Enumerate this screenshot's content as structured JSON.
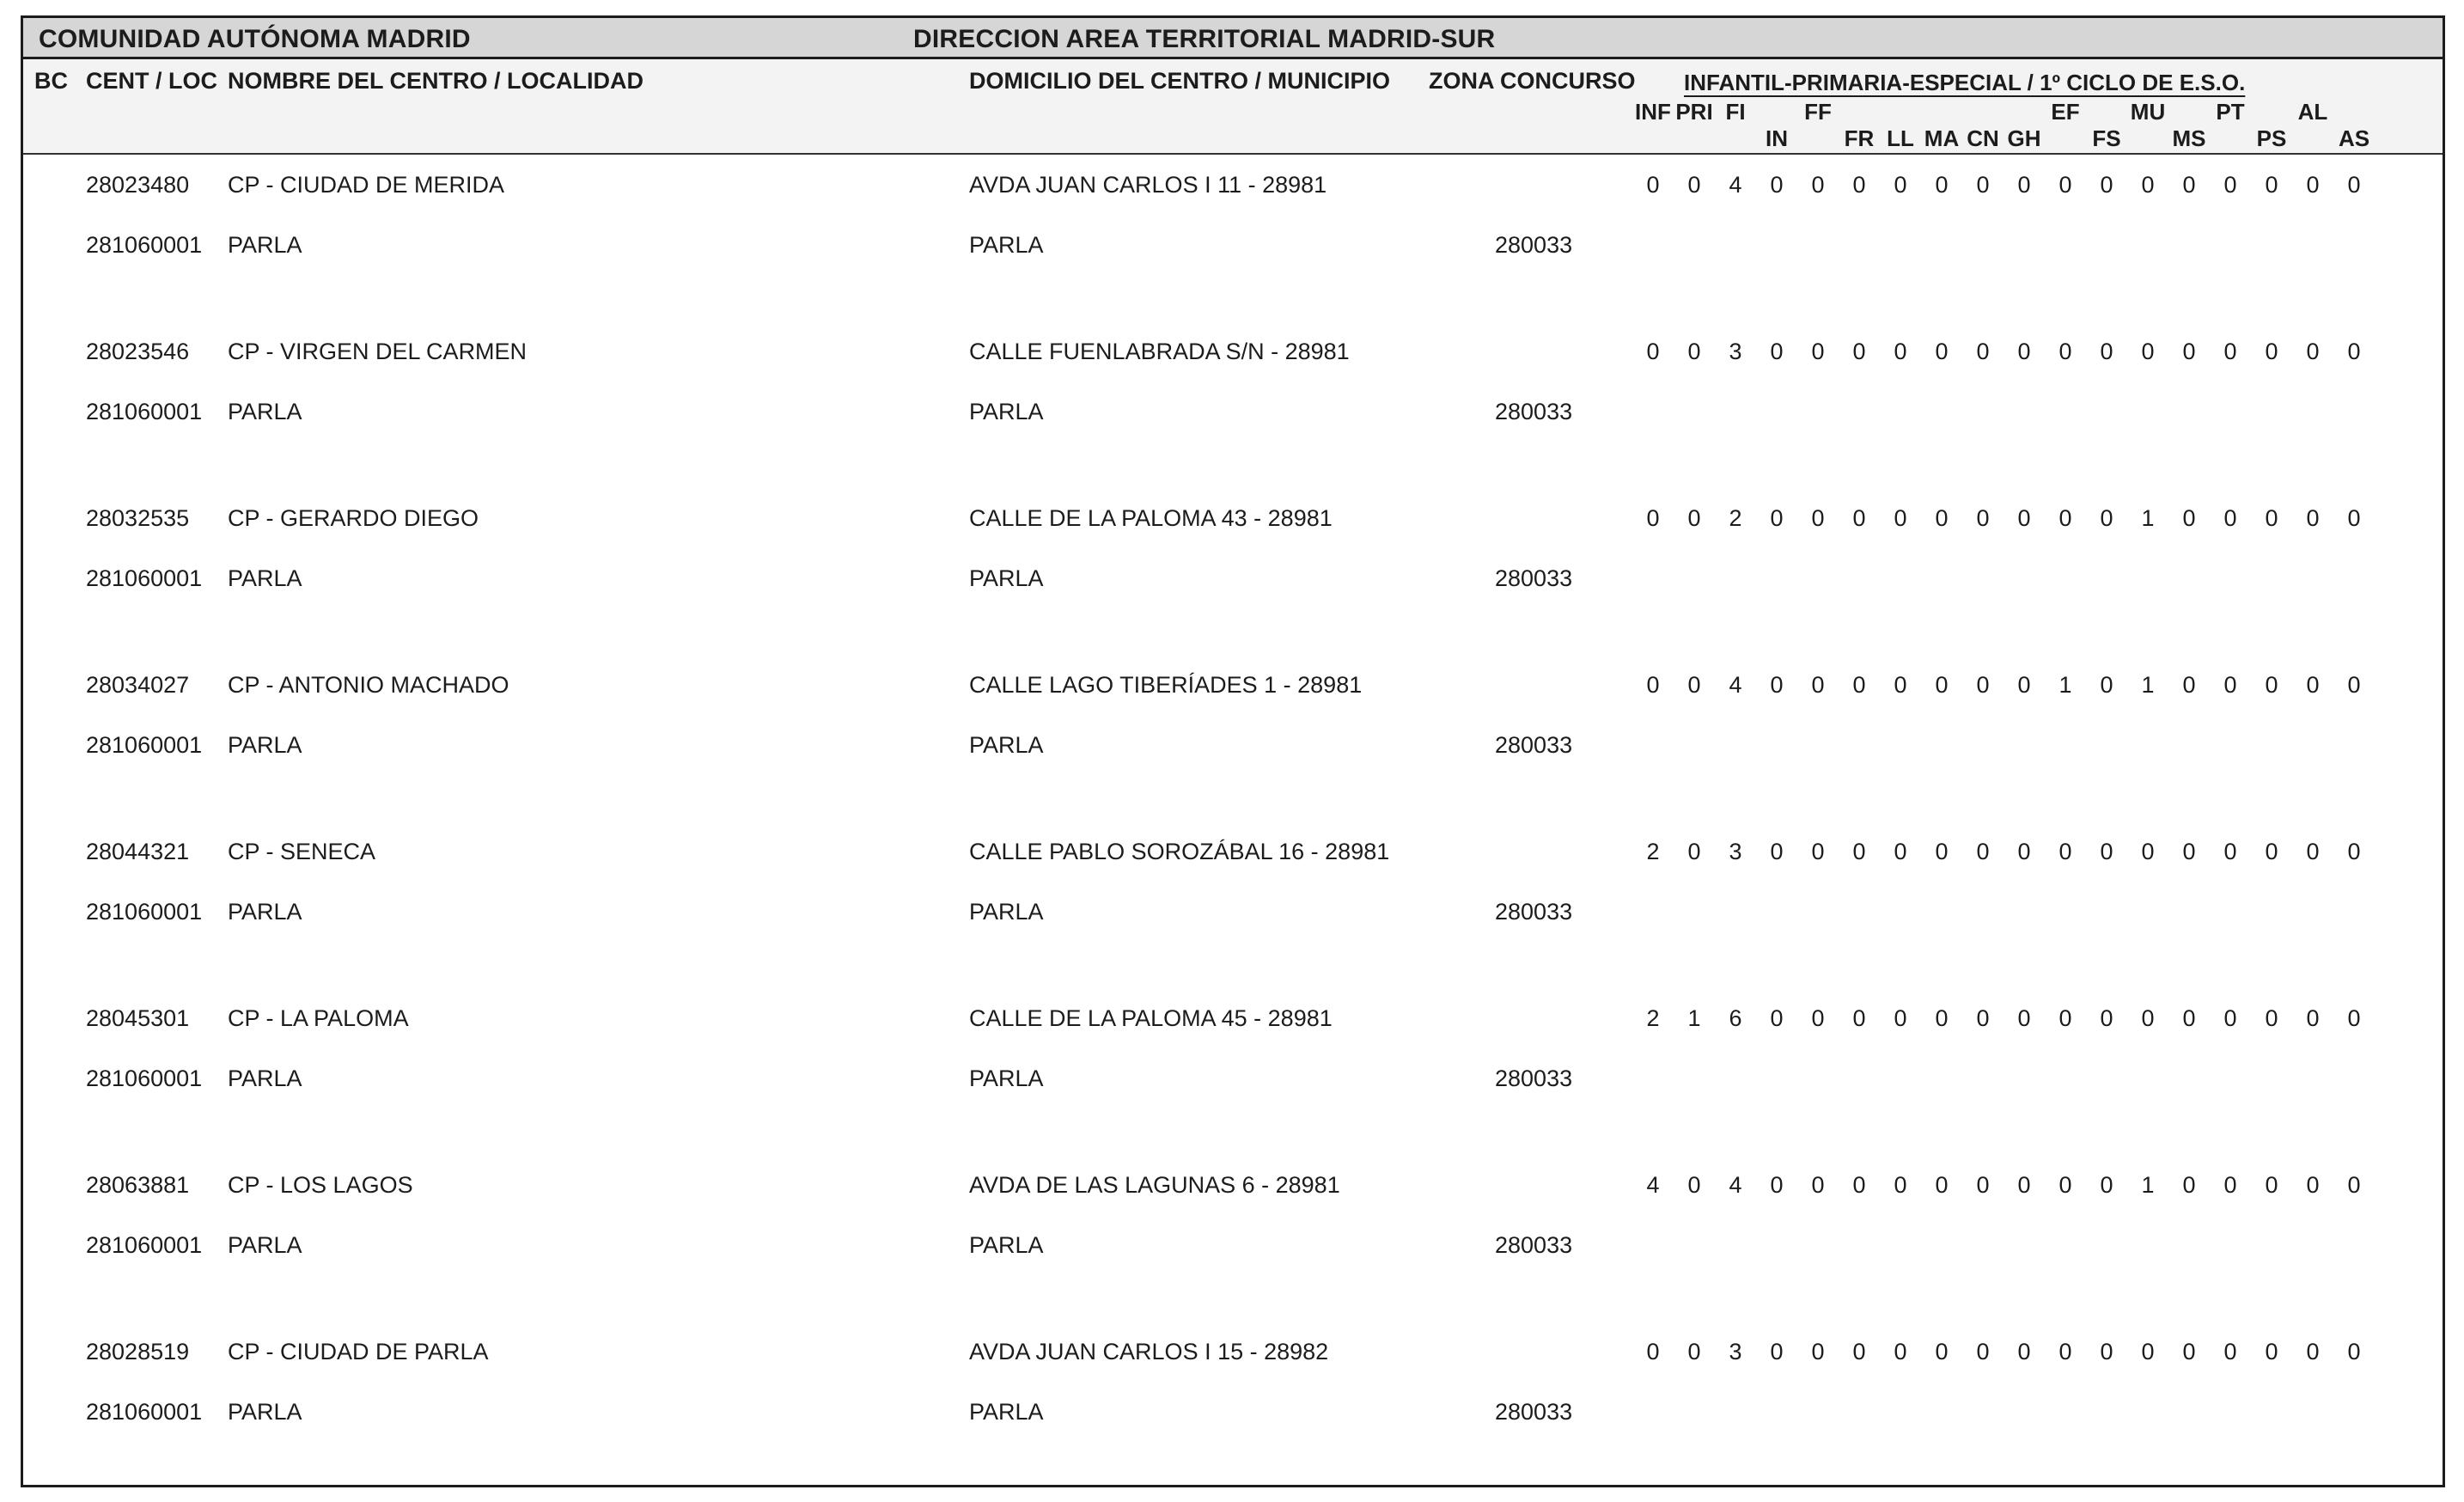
{
  "page": {
    "region_title": "COMUNIDAD AUTÓNOMA MADRID",
    "direction_title": "DIRECCION AREA TERRITORIAL MADRID-SUR"
  },
  "table": {
    "headers": {
      "bc": "BC",
      "cent_loc": "CENT / LOC",
      "nombre": "NOMBRE DEL CENTRO / LOCALIDAD",
      "domicilio": "DOMICILIO DEL CENTRO / MUNICIPIO",
      "zona": "ZONA CONCURSO",
      "group_title": "INFANTIL-PRIMARIA-ESPECIAL / 1º CICLO DE E.S.O.",
      "subject_columns": [
        "INF",
        "PRI",
        "FI",
        "IN",
        "FF",
        "FR",
        "LL",
        "MA",
        "CN",
        "GH",
        "EF",
        "FS",
        "MU",
        "MS",
        "PT",
        "PS",
        "AL",
        "AS"
      ],
      "subject_row_top": [
        "INF",
        "PRI",
        "FI",
        "",
        "FF",
        "",
        "",
        "",
        "",
        "",
        "EF",
        "",
        "MU",
        "",
        "PT",
        "",
        "AL",
        ""
      ],
      "subject_row_bottom": [
        "",
        "",
        "",
        "IN",
        "",
        "FR",
        "LL",
        "MA",
        "CN",
        "GH",
        "",
        "FS",
        "",
        "MS",
        "",
        "PS",
        "",
        "AS"
      ]
    },
    "rows": [
      {
        "center_code": "28023480",
        "center_name": "CP - CIUDAD DE MERIDA",
        "address": "AVDA JUAN CARLOS I 11 - 28981",
        "loc_code": "281060001",
        "locality": "PARLA",
        "municipality": "PARLA",
        "zona_concurso": "280033",
        "values": [
          "0",
          "0",
          "4",
          "0",
          "0",
          "0",
          "0",
          "0",
          "0",
          "0",
          "0",
          "0",
          "0",
          "0",
          "0",
          "0",
          "0",
          "0"
        ]
      },
      {
        "center_code": "28023546",
        "center_name": "CP - VIRGEN DEL CARMEN",
        "address": "CALLE FUENLABRADA S/N - 28981",
        "loc_code": "281060001",
        "locality": "PARLA",
        "municipality": "PARLA",
        "zona_concurso": "280033",
        "values": [
          "0",
          "0",
          "3",
          "0",
          "0",
          "0",
          "0",
          "0",
          "0",
          "0",
          "0",
          "0",
          "0",
          "0",
          "0",
          "0",
          "0",
          "0"
        ]
      },
      {
        "center_code": "28032535",
        "center_name": "CP - GERARDO DIEGO",
        "address": "CALLE DE LA PALOMA 43 - 28981",
        "loc_code": "281060001",
        "locality": "PARLA",
        "municipality": "PARLA",
        "zona_concurso": "280033",
        "values": [
          "0",
          "0",
          "2",
          "0",
          "0",
          "0",
          "0",
          "0",
          "0",
          "0",
          "0",
          "0",
          "1",
          "0",
          "0",
          "0",
          "0",
          "0"
        ]
      },
      {
        "center_code": "28034027",
        "center_name": "CP - ANTONIO MACHADO",
        "address": "CALLE LAGO TIBERÍADES 1 - 28981",
        "loc_code": "281060001",
        "locality": "PARLA",
        "municipality": "PARLA",
        "zona_concurso": "280033",
        "values": [
          "0",
          "0",
          "4",
          "0",
          "0",
          "0",
          "0",
          "0",
          "0",
          "0",
          "1",
          "0",
          "1",
          "0",
          "0",
          "0",
          "0",
          "0"
        ]
      },
      {
        "center_code": "28044321",
        "center_name": "CP - SENECA",
        "address": "CALLE PABLO SOROZÁBAL 16 - 28981",
        "loc_code": "281060001",
        "locality": "PARLA",
        "municipality": "PARLA",
        "zona_concurso": "280033",
        "values": [
          "2",
          "0",
          "3",
          "0",
          "0",
          "0",
          "0",
          "0",
          "0",
          "0",
          "0",
          "0",
          "0",
          "0",
          "0",
          "0",
          "0",
          "0"
        ]
      },
      {
        "center_code": "28045301",
        "center_name": "CP - LA PALOMA",
        "address": "CALLE DE LA PALOMA 45 - 28981",
        "loc_code": "281060001",
        "locality": "PARLA",
        "municipality": "PARLA",
        "zona_concurso": "280033",
        "values": [
          "2",
          "1",
          "6",
          "0",
          "0",
          "0",
          "0",
          "0",
          "0",
          "0",
          "0",
          "0",
          "0",
          "0",
          "0",
          "0",
          "0",
          "0"
        ]
      },
      {
        "center_code": "28063881",
        "center_name": "CP - LOS LAGOS",
        "address": "AVDA DE LAS LAGUNAS 6 - 28981",
        "loc_code": "281060001",
        "locality": "PARLA",
        "municipality": "PARLA",
        "zona_concurso": "280033",
        "values": [
          "4",
          "0",
          "4",
          "0",
          "0",
          "0",
          "0",
          "0",
          "0",
          "0",
          "0",
          "0",
          "1",
          "0",
          "0",
          "0",
          "0",
          "0"
        ]
      },
      {
        "center_code": "28028519",
        "center_name": "CP - CIUDAD DE PARLA",
        "address": "AVDA JUAN CARLOS I 15 - 28982",
        "loc_code": "281060001",
        "locality": "PARLA",
        "municipality": "PARLA",
        "zona_concurso": "280033",
        "values": [
          "0",
          "0",
          "3",
          "0",
          "0",
          "0",
          "0",
          "0",
          "0",
          "0",
          "0",
          "0",
          "0",
          "0",
          "0",
          "0",
          "0",
          "0"
        ]
      }
    ]
  },
  "colors": {
    "header_bar_bg": "#d6d6d6",
    "column_header_bg": "#f3f3f3",
    "border": "#1c1c1c",
    "text": "#1c1c1c"
  }
}
